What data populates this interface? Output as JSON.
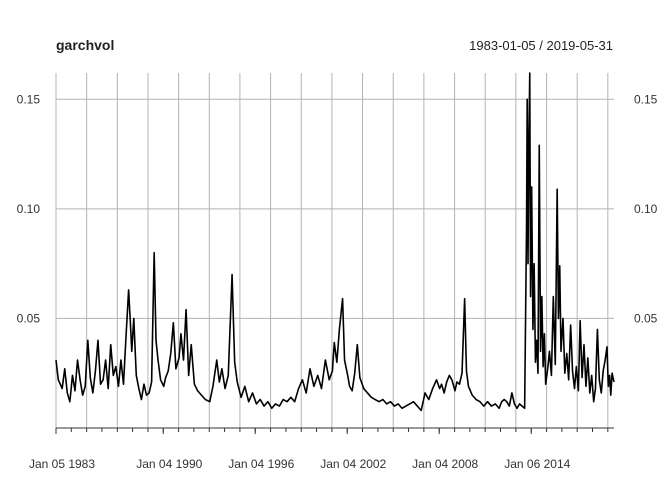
{
  "chart_data": {
    "type": "line",
    "title": "garchvol",
    "subtitle": "1983-01-05 / 2019-05-31",
    "xlabel": "",
    "ylabel": "",
    "xlim": [
      "1983-01-05",
      "2019-05-31"
    ],
    "ylim": [
      0.0,
      0.162
    ],
    "grid": true,
    "y_ticks": [
      0.05,
      0.1,
      0.15
    ],
    "y_tick_labels": [
      "0.05",
      "0.10",
      "0.15"
    ],
    "x_tick_labels": [
      {
        "date": "1983-01-05",
        "label": "Jan 05 1983"
      },
      {
        "date": "1990-01-04",
        "label": "Jan 04 1990"
      },
      {
        "date": "1996-01-04",
        "label": "Jan 04 1996"
      },
      {
        "date": "2002-01-04",
        "label": "Jan 04 2002"
      },
      {
        "date": "2008-01-04",
        "label": "Jan 04 2008"
      },
      {
        "date": "2014-01-06",
        "label": "Jan 06 2014"
      }
    ],
    "x_minor_ticks": [
      "1984-01-04",
      "1985-01-04",
      "1986-01-03",
      "1987-01-05",
      "1988-01-04",
      "1989-01-04",
      "1990-01-04",
      "1991-01-04",
      "1992-01-03",
      "1993-01-04",
      "1994-01-04",
      "1995-01-04",
      "1996-01-04",
      "1997-01-03",
      "1998-01-05",
      "1999-01-04",
      "2000-01-04",
      "2001-01-04",
      "2002-01-04",
      "2003-01-03",
      "2004-01-05",
      "2005-01-04",
      "2006-01-04",
      "2007-01-04",
      "2008-01-04",
      "2009-01-05",
      "2010-01-04",
      "2011-01-04",
      "2012-01-04",
      "2013-01-04",
      "2014-01-06",
      "2015-01-05",
      "2016-01-05",
      "2017-01-04",
      "2018-01-04",
      "2019-01-04"
    ],
    "series": [
      {
        "name": "",
        "color": "#000000",
        "points": [
          [
            "1983-01-05",
            0.031
          ],
          [
            "1983-03-01",
            0.022
          ],
          [
            "1983-06-01",
            0.018
          ],
          [
            "1983-08-01",
            0.027
          ],
          [
            "1983-10-01",
            0.016
          ],
          [
            "1983-12-01",
            0.012
          ],
          [
            "1984-02-01",
            0.024
          ],
          [
            "1984-04-01",
            0.017
          ],
          [
            "1984-06-01",
            0.031
          ],
          [
            "1984-08-01",
            0.022
          ],
          [
            "1984-10-01",
            0.015
          ],
          [
            "1984-12-01",
            0.019
          ],
          [
            "1985-02-01",
            0.04
          ],
          [
            "1985-04-01",
            0.023
          ],
          [
            "1985-06-01",
            0.016
          ],
          [
            "1985-08-01",
            0.026
          ],
          [
            "1985-10-01",
            0.04
          ],
          [
            "1985-12-01",
            0.02
          ],
          [
            "1986-02-01",
            0.022
          ],
          [
            "1986-04-01",
            0.031
          ],
          [
            "1986-06-01",
            0.018
          ],
          [
            "1986-08-01",
            0.038
          ],
          [
            "1986-10-01",
            0.024
          ],
          [
            "1986-12-01",
            0.028
          ],
          [
            "1987-02-01",
            0.019
          ],
          [
            "1987-04-01",
            0.031
          ],
          [
            "1987-06-01",
            0.02
          ],
          [
            "1987-08-01",
            0.042
          ],
          [
            "1987-10-01",
            0.063
          ],
          [
            "1987-11-15",
            0.047
          ],
          [
            "1987-12-15",
            0.035
          ],
          [
            "1988-02-01",
            0.05
          ],
          [
            "1988-04-01",
            0.024
          ],
          [
            "1988-06-01",
            0.018
          ],
          [
            "1988-08-01",
            0.013
          ],
          [
            "1988-10-01",
            0.02
          ],
          [
            "1988-12-01",
            0.015
          ],
          [
            "1989-02-01",
            0.016
          ],
          [
            "1989-04-01",
            0.021
          ],
          [
            "1989-06-01",
            0.08
          ],
          [
            "1989-07-15",
            0.04
          ],
          [
            "1989-09-01",
            0.031
          ],
          [
            "1989-11-01",
            0.022
          ],
          [
            "1990-01-15",
            0.019
          ],
          [
            "1990-03-01",
            0.023
          ],
          [
            "1990-05-01",
            0.026
          ],
          [
            "1990-07-01",
            0.034
          ],
          [
            "1990-09-01",
            0.048
          ],
          [
            "1990-11-01",
            0.027
          ],
          [
            "1991-01-15",
            0.032
          ],
          [
            "1991-03-01",
            0.043
          ],
          [
            "1991-05-01",
            0.031
          ],
          [
            "1991-07-01",
            0.054
          ],
          [
            "1991-09-01",
            0.024
          ],
          [
            "1991-11-01",
            0.038
          ],
          [
            "1992-01-15",
            0.02
          ],
          [
            "1992-04-01",
            0.017
          ],
          [
            "1992-07-01",
            0.015
          ],
          [
            "1992-10-01",
            0.013
          ],
          [
            "1993-01-15",
            0.012
          ],
          [
            "1993-04-01",
            0.019
          ],
          [
            "1993-07-01",
            0.031
          ],
          [
            "1993-09-01",
            0.021
          ],
          [
            "1993-11-01",
            0.027
          ],
          [
            "1994-01-15",
            0.018
          ],
          [
            "1994-04-01",
            0.024
          ],
          [
            "1994-07-01",
            0.07
          ],
          [
            "1994-09-01",
            0.03
          ],
          [
            "1994-11-01",
            0.021
          ],
          [
            "1995-02-01",
            0.014
          ],
          [
            "1995-05-01",
            0.019
          ],
          [
            "1995-08-01",
            0.012
          ],
          [
            "1995-11-01",
            0.016
          ],
          [
            "1996-02-01",
            0.011
          ],
          [
            "1996-05-01",
            0.013
          ],
          [
            "1996-08-01",
            0.01
          ],
          [
            "1996-11-01",
            0.012
          ],
          [
            "1997-02-01",
            0.009
          ],
          [
            "1997-05-01",
            0.011
          ],
          [
            "1997-08-01",
            0.01
          ],
          [
            "1997-11-01",
            0.013
          ],
          [
            "1998-02-01",
            0.012
          ],
          [
            "1998-05-01",
            0.014
          ],
          [
            "1998-08-01",
            0.012
          ],
          [
            "1998-11-01",
            0.018
          ],
          [
            "1999-02-01",
            0.022
          ],
          [
            "1999-05-01",
            0.016
          ],
          [
            "1999-08-01",
            0.027
          ],
          [
            "1999-11-01",
            0.019
          ],
          [
            "2000-02-01",
            0.024
          ],
          [
            "2000-05-01",
            0.018
          ],
          [
            "2000-08-01",
            0.031
          ],
          [
            "2000-11-01",
            0.022
          ],
          [
            "2001-01-15",
            0.026
          ],
          [
            "2001-03-01",
            0.039
          ],
          [
            "2001-05-01",
            0.03
          ],
          [
            "2001-07-01",
            0.045
          ],
          [
            "2001-09-15",
            0.059
          ],
          [
            "2001-11-01",
            0.031
          ],
          [
            "2002-01-15",
            0.024
          ],
          [
            "2002-03-01",
            0.019
          ],
          [
            "2002-05-01",
            0.017
          ],
          [
            "2002-07-01",
            0.025
          ],
          [
            "2002-09-01",
            0.038
          ],
          [
            "2002-11-01",
            0.023
          ],
          [
            "2003-02-01",
            0.018
          ],
          [
            "2003-05-01",
            0.016
          ],
          [
            "2003-08-01",
            0.014
          ],
          [
            "2003-11-01",
            0.013
          ],
          [
            "2004-02-01",
            0.012
          ],
          [
            "2004-05-01",
            0.013
          ],
          [
            "2004-08-01",
            0.011
          ],
          [
            "2004-11-01",
            0.012
          ],
          [
            "2005-02-01",
            0.01
          ],
          [
            "2005-05-01",
            0.011
          ],
          [
            "2005-08-01",
            0.009
          ],
          [
            "2005-11-01",
            0.01
          ],
          [
            "2006-02-01",
            0.011
          ],
          [
            "2006-05-01",
            0.012
          ],
          [
            "2006-08-01",
            0.01
          ],
          [
            "2006-11-01",
            0.008
          ],
          [
            "2007-02-01",
            0.016
          ],
          [
            "2007-05-01",
            0.013
          ],
          [
            "2007-08-01",
            0.018
          ],
          [
            "2007-11-01",
            0.022
          ],
          [
            "2008-01-15",
            0.018
          ],
          [
            "2008-03-01",
            0.02
          ],
          [
            "2008-05-01",
            0.016
          ],
          [
            "2008-07-01",
            0.021
          ],
          [
            "2008-09-01",
            0.024
          ],
          [
            "2008-11-01",
            0.022
          ],
          [
            "2009-01-15",
            0.017
          ],
          [
            "2009-03-01",
            0.021
          ],
          [
            "2009-05-01",
            0.02
          ],
          [
            "2009-07-01",
            0.025
          ],
          [
            "2009-09-01",
            0.059
          ],
          [
            "2009-10-15",
            0.026
          ],
          [
            "2009-12-01",
            0.019
          ],
          [
            "2010-03-01",
            0.015
          ],
          [
            "2010-06-01",
            0.013
          ],
          [
            "2010-09-01",
            0.012
          ],
          [
            "2010-12-01",
            0.01
          ],
          [
            "2011-03-01",
            0.012
          ],
          [
            "2011-06-01",
            0.01
          ],
          [
            "2011-09-01",
            0.011
          ],
          [
            "2011-12-01",
            0.009
          ],
          [
            "2012-02-01",
            0.012
          ],
          [
            "2012-04-01",
            0.013
          ],
          [
            "2012-06-01",
            0.012
          ],
          [
            "2012-08-01",
            0.01
          ],
          [
            "2012-10-01",
            0.016
          ],
          [
            "2012-12-01",
            0.011
          ],
          [
            "2013-02-01",
            0.009
          ],
          [
            "2013-04-01",
            0.011
          ],
          [
            "2013-06-01",
            0.01
          ],
          [
            "2013-08-01",
            0.009
          ],
          [
            "2013-09-15",
            0.092
          ],
          [
            "2013-10-01",
            0.15
          ],
          [
            "2013-10-20",
            0.075
          ],
          [
            "2013-11-10",
            0.131
          ],
          [
            "2013-12-01",
            0.162
          ],
          [
            "2013-12-20",
            0.06
          ],
          [
            "2014-01-15",
            0.11
          ],
          [
            "2014-02-15",
            0.045
          ],
          [
            "2014-03-15",
            0.075
          ],
          [
            "2014-04-15",
            0.03
          ],
          [
            "2014-05-15",
            0.04
          ],
          [
            "2014-06-15",
            0.025
          ],
          [
            "2014-07-15",
            0.129
          ],
          [
            "2014-08-15",
            0.035
          ],
          [
            "2014-09-15",
            0.06
          ],
          [
            "2014-10-15",
            0.028
          ],
          [
            "2014-11-15",
            0.043
          ],
          [
            "2014-12-15",
            0.02
          ],
          [
            "2015-02-01",
            0.027
          ],
          [
            "2015-03-15",
            0.035
          ],
          [
            "2015-05-01",
            0.024
          ],
          [
            "2015-06-15",
            0.06
          ],
          [
            "2015-08-01",
            0.029
          ],
          [
            "2015-09-15",
            0.109
          ],
          [
            "2015-10-15",
            0.05
          ],
          [
            "2015-11-15",
            0.074
          ],
          [
            "2015-12-15",
            0.035
          ],
          [
            "2016-02-01",
            0.05
          ],
          [
            "2016-03-15",
            0.025
          ],
          [
            "2016-05-01",
            0.034
          ],
          [
            "2016-06-15",
            0.022
          ],
          [
            "2016-08-01",
            0.047
          ],
          [
            "2016-09-15",
            0.026
          ],
          [
            "2016-11-01",
            0.018
          ],
          [
            "2016-12-15",
            0.028
          ],
          [
            "2017-02-01",
            0.017
          ],
          [
            "2017-03-15",
            0.049
          ],
          [
            "2017-05-01",
            0.023
          ],
          [
            "2017-06-15",
            0.038
          ],
          [
            "2017-08-01",
            0.019
          ],
          [
            "2017-09-15",
            0.032
          ],
          [
            "2017-11-01",
            0.016
          ],
          [
            "2017-12-15",
            0.024
          ],
          [
            "2018-02-01",
            0.012
          ],
          [
            "2018-03-15",
            0.018
          ],
          [
            "2018-05-01",
            0.045
          ],
          [
            "2018-06-15",
            0.022
          ],
          [
            "2018-08-01",
            0.016
          ],
          [
            "2018-09-15",
            0.026
          ],
          [
            "2018-11-01",
            0.031
          ],
          [
            "2018-12-15",
            0.037
          ],
          [
            "2019-01-15",
            0.019
          ],
          [
            "2019-02-15",
            0.024
          ],
          [
            "2019-03-15",
            0.015
          ],
          [
            "2019-04-15",
            0.025
          ],
          [
            "2019-05-31",
            0.021
          ]
        ]
      }
    ]
  }
}
